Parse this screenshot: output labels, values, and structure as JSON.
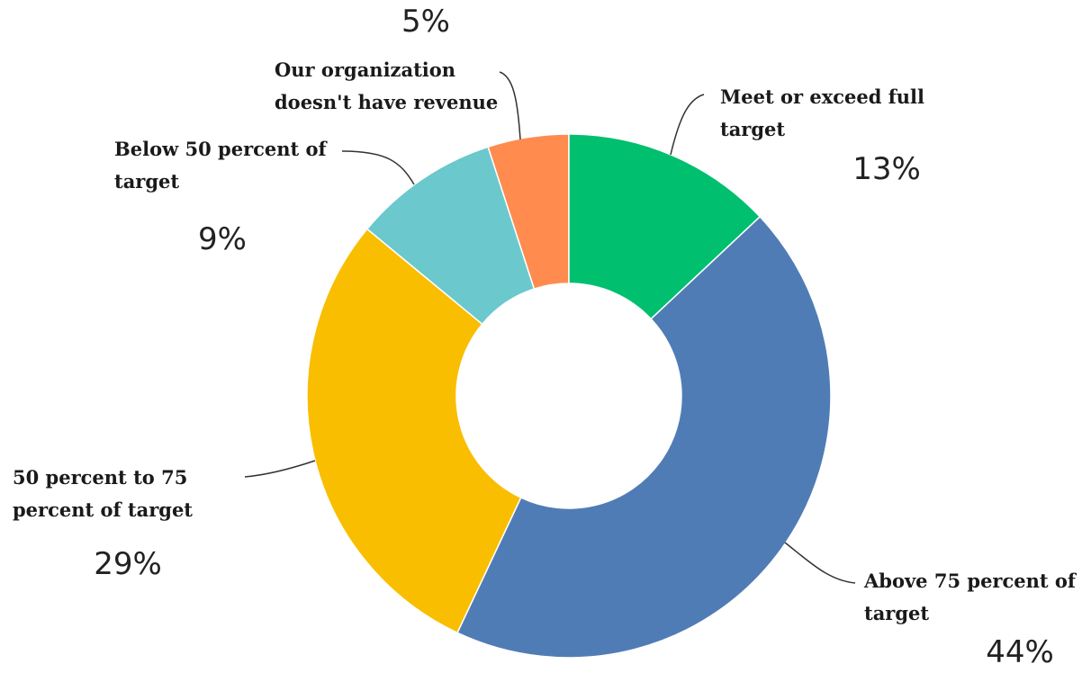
{
  "chart_data": {
    "type": "donut",
    "categories": [
      "Meet or exceed full target",
      "Above 75 percent of target",
      "50 percent to 75 percent of target",
      "Below 50 percent of target",
      "Our organization doesn't have revenue"
    ],
    "values": [
      13,
      44,
      29,
      9,
      5
    ],
    "value_labels": [
      "13%",
      "44%",
      "29%",
      "9%",
      "5%"
    ],
    "colors": [
      "#00bf6f",
      "#507cb6",
      "#f9be00",
      "#6bc8cd",
      "#ff8b4f"
    ]
  }
}
